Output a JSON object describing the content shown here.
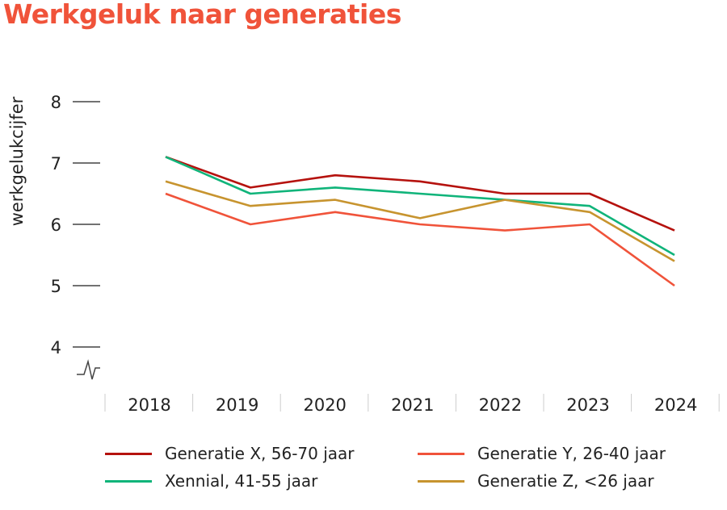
{
  "chart_data": {
    "type": "line",
    "title": "Werkgeluk naar generaties",
    "xlabel": "",
    "ylabel": "werkgelukcijfer",
    "categories": [
      "2018",
      "2019",
      "2020",
      "2021",
      "2022",
      "2023",
      "2024"
    ],
    "ylim": [
      4,
      8
    ],
    "yticks": [
      "4",
      "5",
      "6",
      "7",
      "8"
    ],
    "axis_break": true,
    "grid": false,
    "legend_placement": "bottom",
    "series": [
      {
        "name": "Generatie X, 56-70 jaar",
        "color": "#b5120e",
        "values": [
          7.1,
          6.6,
          6.8,
          6.7,
          6.5,
          6.5,
          5.9
        ]
      },
      {
        "name": "Generatie Y, 26-40 jaar",
        "color": "#f0533a",
        "values": [
          6.5,
          6.0,
          6.2,
          6.0,
          5.9,
          6.0,
          5.0
        ]
      },
      {
        "name": "Xennial, 41-55 jaar",
        "color": "#10b47a",
        "values": [
          7.1,
          6.5,
          6.6,
          6.5,
          6.4,
          6.3,
          5.5
        ]
      },
      {
        "name": "Generatie Z, <26 jaar",
        "color": "#c7942f",
        "values": [
          6.7,
          6.3,
          6.4,
          6.1,
          6.4,
          6.2,
          5.4
        ]
      }
    ]
  }
}
